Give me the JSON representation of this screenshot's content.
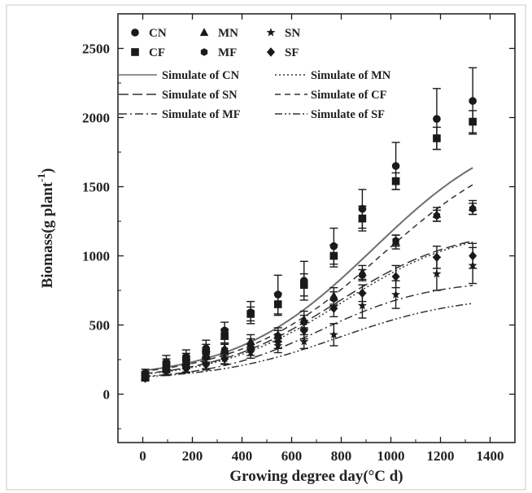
{
  "chart_data": {
    "type": "scatter",
    "title": "",
    "xlabel": "Growing degree day(°C d)",
    "ylabel_main": "Biomass(g plant",
    "ylabel_sup": "-1",
    "ylabel_close": ")",
    "xlim": [
      -100,
      1500
    ],
    "ylim": [
      -350,
      2750
    ],
    "xticks": [
      0,
      200,
      400,
      600,
      800,
      1000,
      1200,
      1400
    ],
    "yticks": [
      0,
      500,
      1000,
      1500,
      2000,
      2500
    ],
    "legend": {
      "placement": "top-left"
    },
    "series": [
      {
        "name": "CN",
        "marker": "circle",
        "x": [
          10,
          95,
          175,
          255,
          330,
          435,
          545,
          650,
          770,
          885,
          1020,
          1185,
          1330
        ],
        "y": [
          150,
          230,
          270,
          330,
          460,
          590,
          720,
          820,
          1070,
          1340,
          1650,
          1990,
          2120
        ],
        "err": [
          30,
          50,
          50,
          60,
          60,
          80,
          140,
          140,
          130,
          140,
          170,
          220,
          240
        ]
      },
      {
        "name": "CF",
        "marker": "square",
        "x": [
          10,
          95,
          175,
          255,
          330,
          435,
          545,
          650,
          770,
          885,
          1020,
          1185,
          1330
        ],
        "y": [
          140,
          215,
          255,
          310,
          420,
          580,
          650,
          790,
          1000,
          1270,
          1540,
          1850,
          1970
        ],
        "err": [
          20,
          40,
          40,
          50,
          50,
          50,
          80,
          80,
          80,
          90,
          60,
          80,
          80
        ]
      },
      {
        "name": "MN",
        "marker": "triangle",
        "x": [
          10,
          95,
          175,
          255,
          330,
          435,
          545,
          650,
          770,
          885,
          1020,
          1185,
          1330
        ],
        "y": [
          130,
          190,
          220,
          270,
          330,
          380,
          430,
          540,
          710,
          880,
          1100,
          1300,
          1350
        ],
        "err": [
          20,
          30,
          30,
          40,
          40,
          50,
          50,
          60,
          60,
          50,
          50,
          50,
          50
        ]
      },
      {
        "name": "MF",
        "marker": "hexagon",
        "x": [
          10,
          95,
          175,
          255,
          330,
          435,
          545,
          650,
          770,
          885,
          1020,
          1185,
          1330
        ],
        "y": [
          125,
          185,
          215,
          265,
          320,
          360,
          420,
          520,
          690,
          860,
          1110,
          1290,
          1340
        ],
        "err": [
          20,
          30,
          30,
          40,
          40,
          40,
          40,
          50,
          50,
          40,
          40,
          40,
          40
        ]
      },
      {
        "name": "SN",
        "marker": "star",
        "x": [
          10,
          95,
          175,
          255,
          330,
          435,
          545,
          650,
          770,
          885,
          1020,
          1185,
          1330
        ],
        "y": [
          120,
          170,
          190,
          225,
          260,
          300,
          350,
          380,
          430,
          640,
          720,
          870,
          930
        ],
        "err": [
          20,
          30,
          30,
          40,
          40,
          40,
          50,
          50,
          80,
          90,
          100,
          120,
          130
        ]
      },
      {
        "name": "SF",
        "marker": "diamond",
        "x": [
          10,
          95,
          175,
          255,
          330,
          435,
          545,
          650,
          770,
          885,
          1020,
          1185,
          1330
        ],
        "y": [
          115,
          165,
          185,
          215,
          255,
          320,
          380,
          460,
          620,
          730,
          850,
          990,
          1000
        ],
        "err": [
          20,
          30,
          30,
          40,
          40,
          40,
          50,
          60,
          60,
          60,
          80,
          80,
          90
        ]
      }
    ],
    "simulations": [
      {
        "name": "Simulate of CN",
        "dash": "solid",
        "K": 2000,
        "r": 0.0036,
        "t0": 930,
        "b": 105,
        "color": "#6e6e6e"
      },
      {
        "name": "Simulate of MN",
        "dash": "dot",
        "K": 1220,
        "r": 0.004,
        "t0": 800,
        "b": 100,
        "color": "#333333"
      },
      {
        "name": "Simulate of SN",
        "dash": "long-dash",
        "K": 1220,
        "r": 0.004,
        "t0": 780,
        "b": 100,
        "color": "#333333"
      },
      {
        "name": "Simulate of CF",
        "dash": "dash",
        "K": 1900,
        "r": 0.0035,
        "t0": 960,
        "b": 105,
        "color": "#333333"
      },
      {
        "name": "Simulate of MF",
        "dash": "dash-dot",
        "K": 830,
        "r": 0.0045,
        "t0": 720,
        "b": 100,
        "color": "#333333"
      },
      {
        "name": "Simulate of SF",
        "dash": "dash-dot-dot",
        "K": 720,
        "r": 0.004,
        "t0": 790,
        "b": 100,
        "color": "#333333"
      }
    ]
  }
}
